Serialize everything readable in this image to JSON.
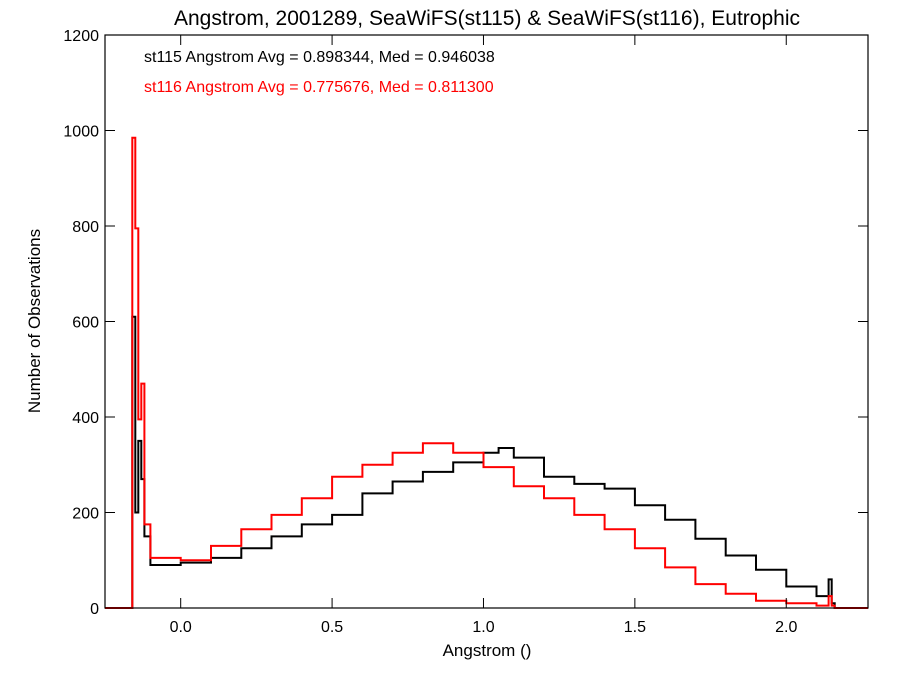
{
  "chart_data": {
    "type": "histogram",
    "title": "Angstrom, 2001289, SeaWiFS(st115) & SeaWiFS(st116), Eutrophic",
    "xlabel": "Angstrom ()",
    "ylabel": "Number of Observations",
    "xlim": [
      -0.25,
      2.27
    ],
    "ylim": [
      0,
      1200
    ],
    "grid": false,
    "x_ticks": [
      0.0,
      0.5,
      1.0,
      1.5,
      2.0
    ],
    "x_tick_labels": [
      "0.0",
      "0.5",
      "1.0",
      "1.5",
      "2.0"
    ],
    "y_ticks": [
      0,
      200,
      400,
      600,
      800,
      1000,
      1200
    ],
    "y_tick_labels": [
      "0",
      "200",
      "400",
      "600",
      "800",
      "1000",
      "1200"
    ],
    "annotations": [
      {
        "text": "st115 Angstrom Avg = 0.898344, Med = 0.946038",
        "color": "#000000"
      },
      {
        "text": "st116 Angstrom Avg = 0.775676, Med = 0.811300",
        "color": "#ff0000"
      }
    ],
    "series": [
      {
        "color": "#000000",
        "x": [
          -0.25,
          -0.17,
          -0.16,
          -0.15,
          -0.14,
          -0.13,
          -0.12,
          -0.1,
          0.0,
          0.1,
          0.2,
          0.3,
          0.4,
          0.5,
          0.6,
          0.7,
          0.8,
          0.9,
          1.0,
          1.05,
          1.1,
          1.2,
          1.3,
          1.4,
          1.5,
          1.6,
          1.7,
          1.8,
          1.9,
          2.0,
          2.1,
          2.14,
          2.15,
          2.16,
          2.27
        ],
        "y": [
          0,
          0,
          610,
          200,
          350,
          270,
          150,
          90,
          95,
          105,
          125,
          150,
          175,
          195,
          240,
          265,
          285,
          305,
          325,
          335,
          315,
          275,
          260,
          250,
          215,
          185,
          145,
          110,
          80,
          45,
          25,
          60,
          10,
          0,
          0
        ]
      },
      {
        "color": "#ff0000",
        "x": [
          -0.25,
          -0.17,
          -0.16,
          -0.15,
          -0.14,
          -0.13,
          -0.12,
          -0.1,
          0.0,
          0.1,
          0.2,
          0.3,
          0.4,
          0.5,
          0.6,
          0.7,
          0.8,
          0.9,
          1.0,
          1.1,
          1.2,
          1.3,
          1.4,
          1.5,
          1.6,
          1.7,
          1.8,
          1.9,
          2.0,
          2.1,
          2.14,
          2.15,
          2.16,
          2.27
        ],
        "y": [
          0,
          0,
          985,
          795,
          395,
          470,
          175,
          105,
          100,
          130,
          165,
          195,
          230,
          275,
          300,
          325,
          345,
          325,
          295,
          255,
          230,
          195,
          165,
          125,
          85,
          50,
          30,
          15,
          10,
          5,
          25,
          5,
          0,
          0
        ]
      }
    ]
  }
}
